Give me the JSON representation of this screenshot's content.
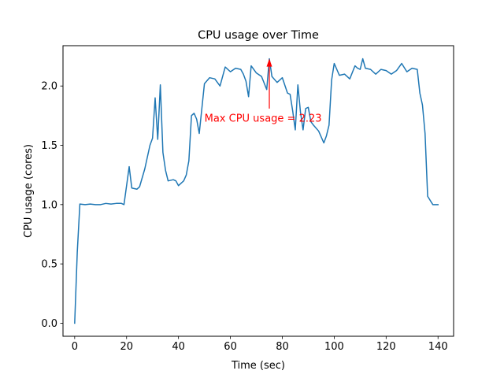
{
  "chart_data": {
    "type": "line",
    "title": "CPU usage over Time",
    "xlabel": "Time (sec)",
    "ylabel": "CPU usage (cores)",
    "xlim": [
      -4.5,
      146
    ],
    "ylim": [
      -0.11,
      2.34
    ],
    "xticks": [
      0,
      20,
      40,
      60,
      80,
      100,
      120,
      140
    ],
    "xtick_labels": [
      "0",
      "20",
      "40",
      "60",
      "80",
      "100",
      "120",
      "140"
    ],
    "yticks": [
      0.0,
      0.5,
      1.0,
      1.5,
      2.0
    ],
    "ytick_labels": [
      "0.0",
      "0.5",
      "1.0",
      "1.5",
      "2.0"
    ],
    "grid": false,
    "legend": false,
    "series": [
      {
        "color": "#1f77b4",
        "x": [
          0,
          1,
          2,
          4,
          6,
          8,
          10,
          12,
          14,
          16,
          18,
          19,
          21,
          22,
          24,
          25,
          27,
          29,
          30,
          31,
          32,
          33,
          34,
          35,
          36,
          37,
          38,
          39,
          40,
          41,
          42,
          43,
          44,
          45,
          46,
          47,
          48,
          50,
          52,
          54,
          56,
          58,
          60,
          62,
          64,
          65,
          66,
          67,
          68,
          70,
          72,
          74,
          75,
          76,
          78,
          80,
          82,
          83,
          84,
          85,
          86,
          87,
          88,
          89,
          90,
          91,
          92,
          94,
          96,
          97,
          98,
          99,
          100,
          101,
          102,
          104,
          106,
          108,
          109,
          110,
          111,
          112,
          114,
          116,
          118,
          120,
          122,
          124,
          126,
          128,
          130,
          132,
          133,
          134,
          135,
          136,
          138,
          140
        ],
        "y": [
          0.0,
          0.6,
          1.005,
          1.0,
          1.005,
          1.0,
          1.0,
          1.01,
          1.005,
          1.01,
          1.01,
          1.0,
          1.32,
          1.14,
          1.13,
          1.15,
          1.3,
          1.5,
          1.56,
          1.9,
          1.55,
          2.01,
          1.44,
          1.29,
          1.2,
          1.205,
          1.21,
          1.2,
          1.16,
          1.18,
          1.2,
          1.25,
          1.37,
          1.75,
          1.77,
          1.72,
          1.6,
          2.02,
          2.07,
          2.06,
          2.0,
          2.16,
          2.12,
          2.15,
          2.14,
          2.1,
          2.04,
          1.91,
          2.17,
          2.11,
          2.08,
          1.97,
          2.23,
          2.08,
          2.03,
          2.07,
          1.94,
          1.93,
          1.79,
          1.63,
          2.01,
          1.78,
          1.63,
          1.81,
          1.82,
          1.7,
          1.67,
          1.62,
          1.52,
          1.58,
          1.67,
          2.05,
          2.19,
          2.14,
          2.09,
          2.1,
          2.06,
          2.17,
          2.15,
          2.14,
          2.23,
          2.15,
          2.14,
          2.1,
          2.14,
          2.13,
          2.1,
          2.13,
          2.19,
          2.12,
          2.15,
          2.14,
          1.94,
          1.84,
          1.6,
          1.07,
          1.0,
          1.0
        ]
      }
    ],
    "annotation": {
      "text": "Max CPU usage = 2.23",
      "color": "#ff0000",
      "point": [
        75,
        2.23
      ],
      "text_anchor_point": [
        50,
        1.73
      ]
    }
  }
}
